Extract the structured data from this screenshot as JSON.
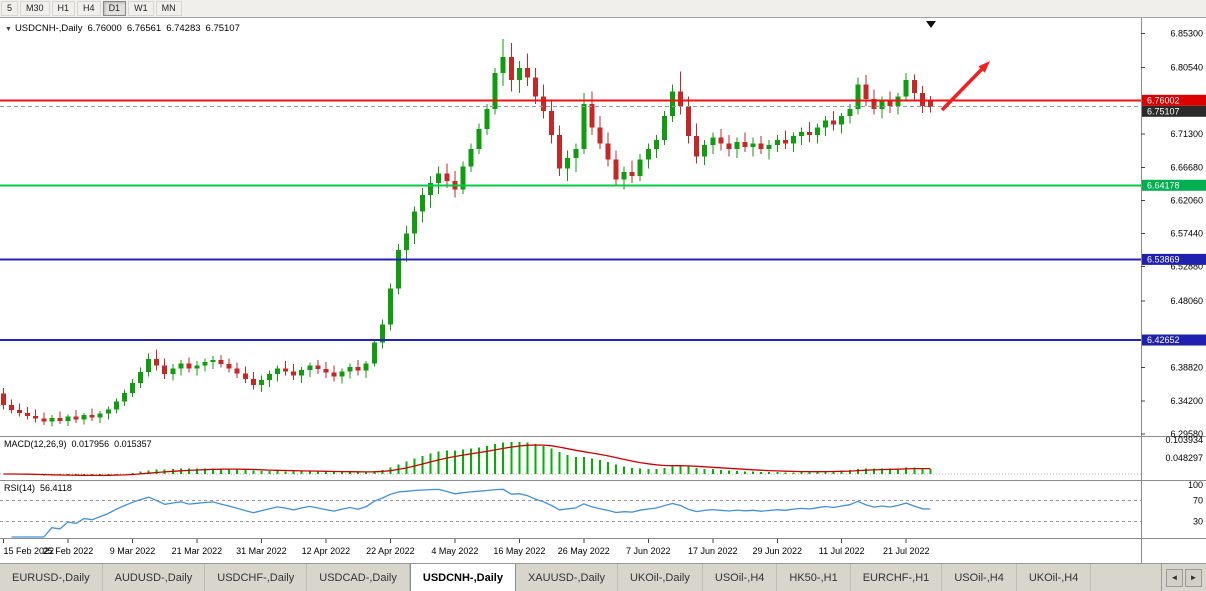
{
  "toolbar": {
    "buttons": [
      {
        "label": "5",
        "active": false
      },
      {
        "label": "M30",
        "active": false
      },
      {
        "label": "H1",
        "active": false
      },
      {
        "label": "H4",
        "active": false
      },
      {
        "label": "D1",
        "active": true
      },
      {
        "label": "W1",
        "active": false
      },
      {
        "label": "MN",
        "active": false
      }
    ]
  },
  "chart_header": {
    "dropdown_icon": "▼",
    "symbol": "USDCNH-,Daily",
    "open": "6.76000",
    "high": "6.76561",
    "low": "6.74283",
    "close": "6.75107"
  },
  "price_axis_ticks": [
    "6.85300",
    "6.80540",
    "6.71300",
    "6.66680",
    "6.62060",
    "6.57440",
    "6.52880",
    "6.48060",
    "6.38820",
    "6.34200",
    "6.29580"
  ],
  "hlines": [
    {
      "price": 6.76002,
      "label": "6.76002",
      "line_color": "#ee1111",
      "badge_color": "#dd0000",
      "line_width": 2,
      "dashed": false
    },
    {
      "price": 6.75107,
      "label": "6.75107",
      "line_color": "#9a9a9a",
      "badge_color": "#2a2a2a",
      "line_width": 1,
      "dashed": true
    },
    {
      "price": 6.64178,
      "label": "6.64178",
      "line_color": "#00cc44",
      "badge_color": "#00b050",
      "line_width": 2,
      "dashed": false
    },
    {
      "price": 6.53869,
      "label": "6.53869",
      "line_color": "#2222bb",
      "badge_color": "#2020b0",
      "line_width": 2,
      "dashed": false
    },
    {
      "price": 6.42652,
      "label": "6.42652",
      "line_color": "#2222bb",
      "badge_color": "#2020b0",
      "line_width": 2,
      "dashed": false
    }
  ],
  "annotations": {
    "up_arrow_color": "#f02020",
    "top_marker": "▼"
  },
  "chart_data": {
    "type": "candlestick",
    "title": "USDCNH-,Daily",
    "up_color": "#0f9d0f",
    "down_color": "#c62828",
    "y_range": [
      6.293,
      6.8745
    ],
    "x_tick_labels": [
      {
        "label": "15 Feb 2022",
        "index": 0
      },
      {
        "label": "25 Feb 2022",
        "index": 8
      },
      {
        "label": "9 Mar 2022",
        "index": 16
      },
      {
        "label": "21 Mar 2022",
        "index": 24
      },
      {
        "label": "31 Mar 2022",
        "index": 32
      },
      {
        "label": "12 Apr 2022",
        "index": 40
      },
      {
        "label": "22 Apr 2022",
        "index": 48
      },
      {
        "label": "4 May 2022",
        "index": 56
      },
      {
        "label": "16 May 2022",
        "index": 64
      },
      {
        "label": "26 May 2022",
        "index": 72
      },
      {
        "label": "7 Jun 2022",
        "index": 80
      },
      {
        "label": "17 Jun 2022",
        "index": 88
      },
      {
        "label": "29 Jun 2022",
        "index": 96
      },
      {
        "label": "11 Jul 2022",
        "index": 104
      },
      {
        "label": "21 Jul 2022",
        "index": 112
      }
    ],
    "candles": [
      [
        6.352,
        6.36,
        6.33,
        6.336
      ],
      [
        6.336,
        6.344,
        6.324,
        6.329
      ],
      [
        6.329,
        6.338,
        6.32,
        6.325
      ],
      [
        6.325,
        6.333,
        6.316,
        6.321
      ],
      [
        6.321,
        6.33,
        6.312,
        6.317
      ],
      [
        6.317,
        6.326,
        6.308,
        6.313
      ],
      [
        6.313,
        6.322,
        6.306,
        6.318
      ],
      [
        6.318,
        6.327,
        6.31,
        6.314
      ],
      [
        6.314,
        6.323,
        6.307,
        6.32
      ],
      [
        6.32,
        6.329,
        6.311,
        6.316
      ],
      [
        6.316,
        6.325,
        6.309,
        6.322
      ],
      [
        6.322,
        6.331,
        6.314,
        6.319
      ],
      [
        6.319,
        6.328,
        6.311,
        6.324
      ],
      [
        6.324,
        6.334,
        6.316,
        6.33
      ],
      [
        6.33,
        6.345,
        6.324,
        6.341
      ],
      [
        6.341,
        6.358,
        6.335,
        6.353
      ],
      [
        6.353,
        6.372,
        6.347,
        6.367
      ],
      [
        6.367,
        6.388,
        6.36,
        6.382
      ],
      [
        6.382,
        6.408,
        6.376,
        6.4
      ],
      [
        6.4,
        6.413,
        6.384,
        6.391
      ],
      [
        6.391,
        6.401,
        6.372,
        6.379
      ],
      [
        6.379,
        6.393,
        6.37,
        6.387
      ],
      [
        6.387,
        6.399,
        6.377,
        6.394
      ],
      [
        6.394,
        6.402,
        6.381,
        6.387
      ],
      [
        6.387,
        6.397,
        6.377,
        6.391
      ],
      [
        6.391,
        6.401,
        6.383,
        6.396
      ],
      [
        6.396,
        6.404,
        6.386,
        6.399
      ],
      [
        6.399,
        6.406,
        6.388,
        6.393
      ],
      [
        6.393,
        6.401,
        6.381,
        6.387
      ],
      [
        6.387,
        6.395,
        6.374,
        6.38
      ],
      [
        6.38,
        6.39,
        6.367,
        6.372
      ],
      [
        6.372,
        6.382,
        6.358,
        6.364
      ],
      [
        6.364,
        6.377,
        6.354,
        6.371
      ],
      [
        6.371,
        6.384,
        6.361,
        6.379
      ],
      [
        6.379,
        6.391,
        6.369,
        6.387
      ],
      [
        6.387,
        6.397,
        6.377,
        6.383
      ],
      [
        6.383,
        6.393,
        6.371,
        6.377
      ],
      [
        6.377,
        6.389,
        6.367,
        6.385
      ],
      [
        6.385,
        6.395,
        6.375,
        6.391
      ],
      [
        6.391,
        6.399,
        6.379,
        6.386
      ],
      [
        6.386,
        6.396,
        6.374,
        6.381
      ],
      [
        6.381,
        6.391,
        6.369,
        6.376
      ],
      [
        6.376,
        6.387,
        6.366,
        6.383
      ],
      [
        6.383,
        6.394,
        6.373,
        6.389
      ],
      [
        6.389,
        6.399,
        6.377,
        6.384
      ],
      [
        6.384,
        6.397,
        6.374,
        6.394
      ],
      [
        6.394,
        6.428,
        6.39,
        6.423
      ],
      [
        6.423,
        6.455,
        6.415,
        6.448
      ],
      [
        6.448,
        6.505,
        6.44,
        6.498
      ],
      [
        6.498,
        6.56,
        6.49,
        6.552
      ],
      [
        6.552,
        6.585,
        6.535,
        6.575
      ],
      [
        6.575,
        6.612,
        6.56,
        6.605
      ],
      [
        6.605,
        6.638,
        6.59,
        6.628
      ],
      [
        6.628,
        6.655,
        6.61,
        6.645
      ],
      [
        6.645,
        6.668,
        6.63,
        6.658
      ],
      [
        6.658,
        6.672,
        6.638,
        6.648
      ],
      [
        6.648,
        6.662,
        6.625,
        6.636
      ],
      [
        6.636,
        6.675,
        6.63,
        6.668
      ],
      [
        6.668,
        6.7,
        6.66,
        6.692
      ],
      [
        6.692,
        6.728,
        6.685,
        6.72
      ],
      [
        6.72,
        6.755,
        6.712,
        6.748
      ],
      [
        6.748,
        6.805,
        6.74,
        6.798
      ],
      [
        6.798,
        6.845,
        6.78,
        6.82
      ],
      [
        6.82,
        6.84,
        6.772,
        6.788
      ],
      [
        6.788,
        6.815,
        6.77,
        6.805
      ],
      [
        6.805,
        6.825,
        6.78,
        6.792
      ],
      [
        6.792,
        6.805,
        6.755,
        6.765
      ],
      [
        6.765,
        6.782,
        6.735,
        6.745
      ],
      [
        6.745,
        6.76,
        6.7,
        6.712
      ],
      [
        6.712,
        6.725,
        6.655,
        6.665
      ],
      [
        6.665,
        6.69,
        6.648,
        6.68
      ],
      [
        6.68,
        6.7,
        6.66,
        6.692
      ],
      [
        6.692,
        6.77,
        6.685,
        6.755
      ],
      [
        6.755,
        6.772,
        6.712,
        6.722
      ],
      [
        6.722,
        6.738,
        6.692,
        6.7
      ],
      [
        6.7,
        6.715,
        6.668,
        6.678
      ],
      [
        6.678,
        6.69,
        6.64,
        6.65
      ],
      [
        6.65,
        6.668,
        6.636,
        6.66
      ],
      [
        6.66,
        6.676,
        6.645,
        6.655
      ],
      [
        6.655,
        6.685,
        6.648,
        6.678
      ],
      [
        6.678,
        6.7,
        6.665,
        6.692
      ],
      [
        6.692,
        6.712,
        6.68,
        6.705
      ],
      [
        6.705,
        6.745,
        6.698,
        6.738
      ],
      [
        6.738,
        6.782,
        6.73,
        6.772
      ],
      [
        6.772,
        6.8,
        6.74,
        6.752
      ],
      [
        6.752,
        6.765,
        6.7,
        6.71
      ],
      [
        6.71,
        6.728,
        6.672,
        6.682
      ],
      [
        6.682,
        6.705,
        6.67,
        6.698
      ],
      [
        6.698,
        6.715,
        6.685,
        6.708
      ],
      [
        6.708,
        6.72,
        6.69,
        6.7
      ],
      [
        6.7,
        6.712,
        6.682,
        6.692
      ],
      [
        6.692,
        6.708,
        6.68,
        6.702
      ],
      [
        6.702,
        6.715,
        6.688,
        6.695
      ],
      [
        6.695,
        6.708,
        6.682,
        6.7
      ],
      [
        6.7,
        6.71,
        6.685,
        6.692
      ],
      [
        6.692,
        6.705,
        6.678,
        6.698
      ],
      [
        6.698,
        6.712,
        6.688,
        6.705
      ],
      [
        6.705,
        6.718,
        6.692,
        6.7
      ],
      [
        6.7,
        6.715,
        6.688,
        6.71
      ],
      [
        6.71,
        6.722,
        6.698,
        6.716
      ],
      [
        6.716,
        6.73,
        6.702,
        6.712
      ],
      [
        6.712,
        6.728,
        6.7,
        6.722
      ],
      [
        6.722,
        6.738,
        6.71,
        6.732
      ],
      [
        6.732,
        6.745,
        6.718,
        6.726
      ],
      [
        6.726,
        6.742,
        6.714,
        6.738
      ],
      [
        6.738,
        6.755,
        6.728,
        6.748
      ],
      [
        6.748,
        6.792,
        6.74,
        6.782
      ],
      [
        6.782,
        6.795,
        6.752,
        6.762
      ],
      [
        6.762,
        6.775,
        6.74,
        6.748
      ],
      [
        6.748,
        6.765,
        6.735,
        6.758
      ],
      [
        6.758,
        6.772,
        6.742,
        6.752
      ],
      [
        6.752,
        6.77,
        6.74,
        6.765
      ],
      [
        6.765,
        6.798,
        6.758,
        6.788
      ],
      [
        6.788,
        6.796,
        6.76,
        6.77
      ],
      [
        6.77,
        6.78,
        6.742,
        6.752
      ],
      [
        6.76,
        6.766,
        6.743,
        6.751
      ]
    ],
    "indicators": {
      "macd": {
        "name": "MACD(12,26,9)",
        "value_main": "0.017956",
        "value_signal": "0.015357",
        "axis_ticks": [
          "0.103934",
          "0.048297"
        ],
        "hist_color": "#00b200",
        "signal_color": "#d00000"
      },
      "rsi": {
        "name": "RSI(14)",
        "value": "56.4118",
        "axis_ticks": [
          "100",
          "70",
          "30"
        ],
        "levels": [
          70,
          30
        ],
        "line_color": "#4090e0"
      }
    }
  },
  "tabs": {
    "items": [
      {
        "label": "EURUSD-,Daily",
        "active": false
      },
      {
        "label": "AUDUSD-,Daily",
        "active": false
      },
      {
        "label": "USDCHF-,Daily",
        "active": false
      },
      {
        "label": "USDCAD-,Daily",
        "active": false
      },
      {
        "label": "USDCNH-,Daily",
        "active": true
      },
      {
        "label": "XAUUSD-,Daily",
        "active": false
      },
      {
        "label": "UKOil-,Daily",
        "active": false
      },
      {
        "label": "USOil-,H4",
        "active": false
      },
      {
        "label": "HK50-,H1",
        "active": false
      },
      {
        "label": "EURCHF-,H1",
        "active": false
      },
      {
        "label": "USOil-,H4",
        "active": false
      },
      {
        "label": "UKOil-,H4",
        "active": false
      }
    ],
    "scroll_left": "◄",
    "scroll_right": "►"
  }
}
